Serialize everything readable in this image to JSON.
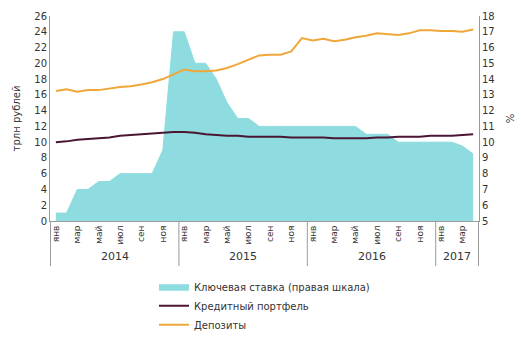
{
  "chart_data": {
    "type": "line",
    "categories": [
      "янв",
      null,
      "мар",
      null,
      "май",
      null,
      "июл",
      null,
      "сен",
      null,
      "ноя",
      null,
      "янв",
      null,
      "мар",
      null,
      "май",
      null,
      "июл",
      null,
      "сен",
      null,
      "ноя",
      null,
      "янв",
      null,
      "мар",
      null,
      "май",
      null,
      "июл",
      null,
      "сен",
      null,
      "ноя",
      null,
      "янв",
      null,
      "мар",
      null
    ],
    "year_groups": [
      {
        "label": "2014",
        "count": 12
      },
      {
        "label": "2015",
        "count": 12
      },
      {
        "label": "2016",
        "count": 12
      },
      {
        "label": "2017",
        "count": 4
      }
    ],
    "y_label": "трлн рублей",
    "y2_label": "%",
    "ylim": [
      0,
      26
    ],
    "yticks": [
      0,
      2,
      4,
      6,
      8,
      10,
      12,
      14,
      16,
      18,
      20,
      22,
      24,
      26
    ],
    "y2lim": [
      5,
      18
    ],
    "y2ticks": [
      5,
      6,
      7,
      8,
      9,
      10,
      11,
      12,
      13,
      14,
      15,
      16,
      17,
      18
    ],
    "grid": false,
    "legend": "bottom",
    "series": [
      {
        "name": "Ключевая ставка (правая шкала)",
        "type": "area",
        "axis": "y2",
        "color": "#8edcdf",
        "values": [
          5.5,
          5.5,
          7,
          7,
          7.5,
          7.5,
          8,
          8,
          8,
          8,
          9.5,
          17,
          17,
          15,
          15,
          14,
          12.5,
          11.5,
          11.5,
          11,
          11,
          11,
          11,
          11,
          11,
          11,
          11,
          11,
          11,
          10.5,
          10.5,
          10.5,
          10,
          10,
          10,
          10,
          10,
          10,
          9.75,
          9.25
        ]
      },
      {
        "name": "Кредитный портфель",
        "type": "line",
        "color": "#4b1634",
        "values": [
          10.0,
          10.1,
          10.3,
          10.4,
          10.5,
          10.6,
          10.8,
          10.9,
          11.0,
          11.1,
          11.2,
          11.3,
          11.3,
          11.2,
          11.0,
          10.9,
          10.8,
          10.8,
          10.7,
          10.7,
          10.7,
          10.7,
          10.6,
          10.6,
          10.6,
          10.6,
          10.5,
          10.5,
          10.5,
          10.5,
          10.6,
          10.6,
          10.7,
          10.7,
          10.7,
          10.8,
          10.8,
          10.8,
          10.9,
          11.0
        ]
      },
      {
        "name": "Депозиты",
        "type": "line",
        "color": "#f0a73a",
        "values": [
          16.5,
          16.7,
          16.4,
          16.6,
          16.6,
          16.8,
          17.0,
          17.1,
          17.3,
          17.6,
          18.0,
          18.6,
          19.2,
          19.0,
          19.0,
          19.1,
          19.4,
          19.9,
          20.4,
          21.0,
          21.1,
          21.1,
          21.5,
          23.2,
          22.9,
          23.1,
          22.8,
          23.0,
          23.3,
          23.5,
          23.8,
          23.7,
          23.6,
          23.8,
          24.2,
          24.2,
          24.1,
          24.1,
          24.0,
          24.3
        ]
      }
    ]
  }
}
